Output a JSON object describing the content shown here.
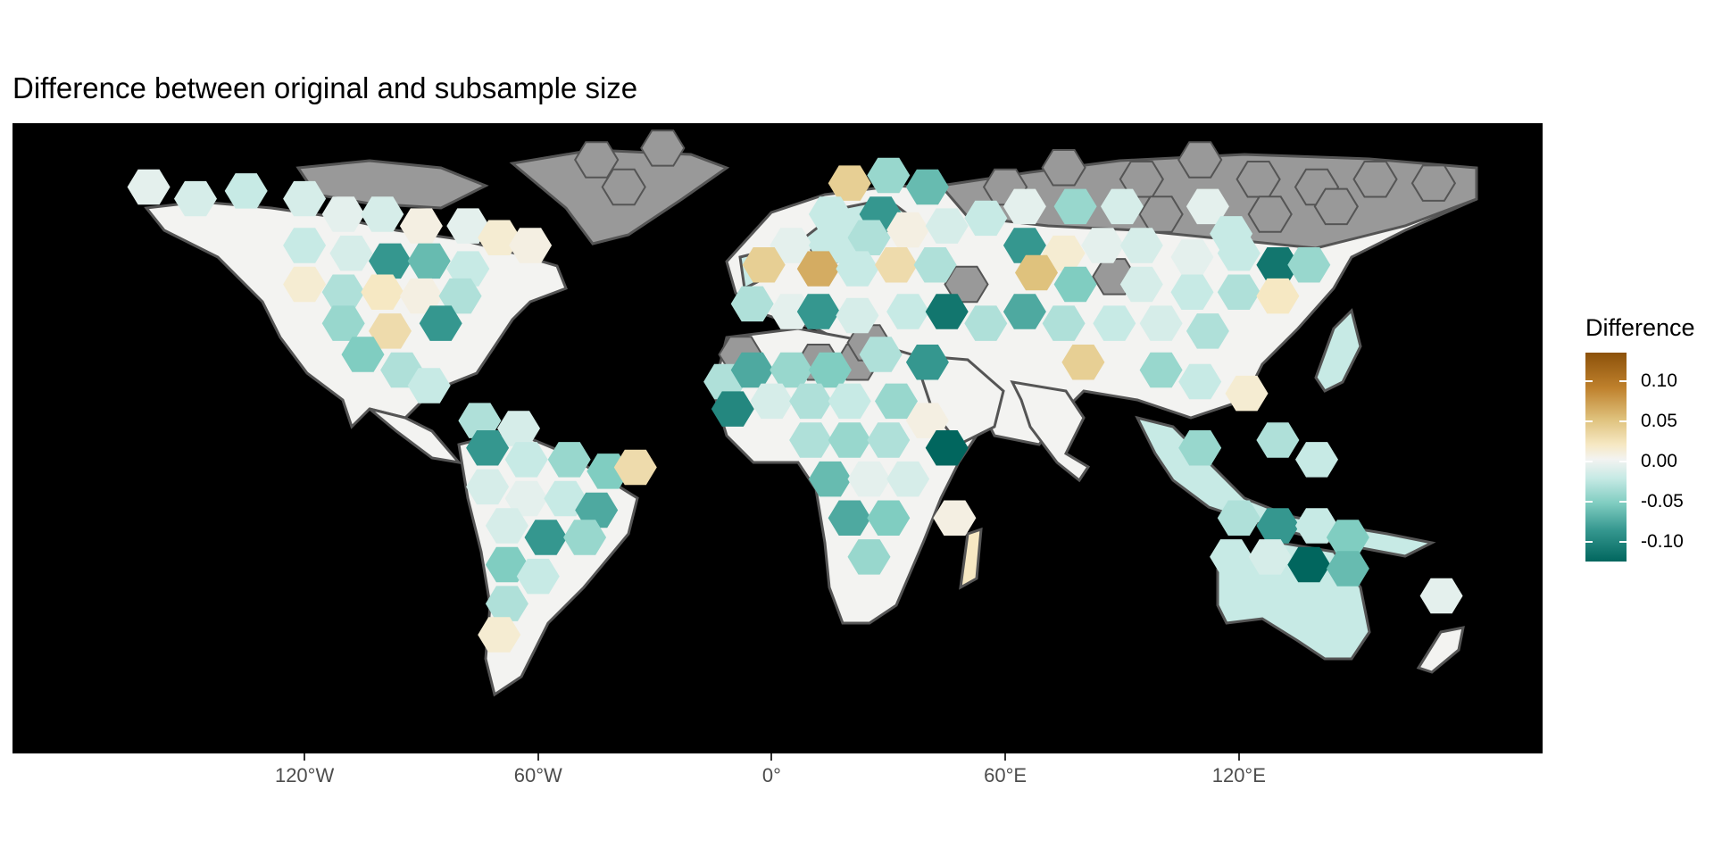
{
  "title": "Difference between original and subsample size",
  "x_axis": {
    "ticks": [
      {
        "label": "120°W",
        "value": -120
      },
      {
        "label": "60°W",
        "value": -60
      },
      {
        "label": "0°",
        "value": 0
      },
      {
        "label": "60°E",
        "value": 60
      },
      {
        "label": "120°E",
        "value": 120
      }
    ],
    "lon_range": [
      -195,
      198
    ]
  },
  "legend": {
    "title": "Difference",
    "range": [
      -0.125,
      0.135
    ],
    "ticks": [
      {
        "label": "0.10",
        "value": 0.1
      },
      {
        "label": "0.05",
        "value": 0.05
      },
      {
        "label": "0.00",
        "value": 0.0
      },
      {
        "label": "-0.05",
        "value": -0.05
      },
      {
        "label": "-0.10",
        "value": -0.1
      }
    ]
  },
  "colors": {
    "background": "#000000",
    "no_data": "#999999",
    "land_outline": "#555555",
    "palette": [
      "#01665e",
      "#35978f",
      "#80cdc1",
      "#c7eae5",
      "#f3f3f1",
      "#f6e8c3",
      "#dfc27d",
      "#bf812d",
      "#8c510a"
    ]
  },
  "map_data": {
    "type": "hexbin-choropleth",
    "no_data_cells": [
      {
        "lon": -45,
        "lat": 72
      },
      {
        "lon": -38,
        "lat": 65
      },
      {
        "lon": -28,
        "lat": 75
      },
      {
        "lon": 75,
        "lat": 70
      },
      {
        "lon": 95,
        "lat": 67
      },
      {
        "lon": 110,
        "lat": 72
      },
      {
        "lon": 125,
        "lat": 67
      },
      {
        "lon": 140,
        "lat": 65
      },
      {
        "lon": 155,
        "lat": 67
      },
      {
        "lon": 170,
        "lat": 66
      },
      {
        "lon": 145,
        "lat": 60
      },
      {
        "lon": 128,
        "lat": 58
      },
      {
        "lon": 60,
        "lat": 65
      },
      {
        "lon": 100,
        "lat": 58
      },
      {
        "lon": 12,
        "lat": 20
      },
      {
        "lon": 22,
        "lat": 20
      },
      {
        "lon": 25,
        "lat": 25
      },
      {
        "lon": -8,
        "lat": 22
      },
      {
        "lon": 50,
        "lat": 40
      },
      {
        "lon": 88,
        "lat": 42
      }
    ],
    "cells": [
      {
        "lon": -160,
        "lat": 65,
        "value": -0.01
      },
      {
        "lon": -148,
        "lat": 62,
        "value": -0.02
      },
      {
        "lon": -135,
        "lat": 64,
        "value": -0.03
      },
      {
        "lon": -120,
        "lat": 62,
        "value": -0.02
      },
      {
        "lon": -110,
        "lat": 58,
        "value": -0.01
      },
      {
        "lon": -100,
        "lat": 58,
        "value": -0.02
      },
      {
        "lon": -90,
        "lat": 55,
        "value": 0.01
      },
      {
        "lon": -78,
        "lat": 55,
        "value": -0.01
      },
      {
        "lon": -70,
        "lat": 52,
        "value": 0.02
      },
      {
        "lon": -62,
        "lat": 50,
        "value": 0.01
      },
      {
        "lon": -120,
        "lat": 50,
        "value": -0.03
      },
      {
        "lon": -108,
        "lat": 48,
        "value": -0.02
      },
      {
        "lon": -98,
        "lat": 46,
        "value": -0.09
      },
      {
        "lon": -88,
        "lat": 46,
        "value": -0.07
      },
      {
        "lon": -78,
        "lat": 44,
        "value": -0.03
      },
      {
        "lon": -120,
        "lat": 40,
        "value": 0.02
      },
      {
        "lon": -110,
        "lat": 38,
        "value": -0.04
      },
      {
        "lon": -100,
        "lat": 38,
        "value": 0.03
      },
      {
        "lon": -90,
        "lat": 37,
        "value": 0.01
      },
      {
        "lon": -80,
        "lat": 37,
        "value": -0.04
      },
      {
        "lon": -110,
        "lat": 30,
        "value": -0.05
      },
      {
        "lon": -98,
        "lat": 28,
        "value": 0.04
      },
      {
        "lon": -85,
        "lat": 30,
        "value": -0.09
      },
      {
        "lon": -105,
        "lat": 22,
        "value": -0.06
      },
      {
        "lon": -95,
        "lat": 18,
        "value": -0.04
      },
      {
        "lon": -88,
        "lat": 14,
        "value": -0.03
      },
      {
        "lon": -75,
        "lat": 5,
        "value": -0.04
      },
      {
        "lon": -65,
        "lat": 3,
        "value": -0.02
      },
      {
        "lon": -73,
        "lat": -2,
        "value": -0.09
      },
      {
        "lon": -63,
        "lat": -5,
        "value": -0.03
      },
      {
        "lon": -52,
        "lat": -5,
        "value": -0.05
      },
      {
        "lon": -42,
        "lat": -8,
        "value": -0.06
      },
      {
        "lon": -35,
        "lat": -7,
        "value": 0.04
      },
      {
        "lon": -73,
        "lat": -12,
        "value": -0.02
      },
      {
        "lon": -63,
        "lat": -15,
        "value": -0.01
      },
      {
        "lon": -53,
        "lat": -15,
        "value": -0.03
      },
      {
        "lon": -45,
        "lat": -18,
        "value": -0.08
      },
      {
        "lon": -68,
        "lat": -22,
        "value": -0.02
      },
      {
        "lon": -58,
        "lat": -25,
        "value": -0.09
      },
      {
        "lon": -48,
        "lat": -25,
        "value": -0.05
      },
      {
        "lon": -68,
        "lat": -32,
        "value": -0.06
      },
      {
        "lon": -60,
        "lat": -35,
        "value": -0.03
      },
      {
        "lon": -68,
        "lat": -42,
        "value": -0.04
      },
      {
        "lon": -70,
        "lat": -50,
        "value": 0.02
      },
      {
        "lon": 20,
        "lat": 66,
        "value": 0.05
      },
      {
        "lon": 30,
        "lat": 68,
        "value": -0.05
      },
      {
        "lon": 40,
        "lat": 65,
        "value": -0.07
      },
      {
        "lon": 15,
        "lat": 58,
        "value": -0.03
      },
      {
        "lon": 28,
        "lat": 58,
        "value": -0.09
      },
      {
        "lon": 5,
        "lat": 50,
        "value": -0.01
      },
      {
        "lon": 15,
        "lat": 50,
        "value": -0.03
      },
      {
        "lon": 25,
        "lat": 52,
        "value": -0.04
      },
      {
        "lon": 35,
        "lat": 54,
        "value": 0.01
      },
      {
        "lon": 45,
        "lat": 55,
        "value": -0.02
      },
      {
        "lon": 55,
        "lat": 57,
        "value": -0.03
      },
      {
        "lon": 65,
        "lat": 60,
        "value": -0.01
      },
      {
        "lon": 78,
        "lat": 60,
        "value": -0.05
      },
      {
        "lon": 90,
        "lat": 60,
        "value": -0.02
      },
      {
        "lon": 112,
        "lat": 60,
        "value": -0.01
      },
      {
        "lon": 118,
        "lat": 53,
        "value": -0.03
      },
      {
        "lon": -2,
        "lat": 45,
        "value": 0.05
      },
      {
        "lon": 12,
        "lat": 44,
        "value": 0.07
      },
      {
        "lon": 22,
        "lat": 44,
        "value": -0.03
      },
      {
        "lon": 32,
        "lat": 45,
        "value": 0.04
      },
      {
        "lon": 42,
        "lat": 45,
        "value": -0.04
      },
      {
        "lon": 65,
        "lat": 50,
        "value": -0.09
      },
      {
        "lon": 75,
        "lat": 48,
        "value": 0.02
      },
      {
        "lon": 85,
        "lat": 50,
        "value": -0.01
      },
      {
        "lon": 95,
        "lat": 50,
        "value": -0.02
      },
      {
        "lon": 108,
        "lat": 47,
        "value": -0.01
      },
      {
        "lon": 120,
        "lat": 48,
        "value": -0.03
      },
      {
        "lon": 130,
        "lat": 45,
        "value": -0.11
      },
      {
        "lon": 138,
        "lat": 45,
        "value": -0.05
      },
      {
        "lon": 68,
        "lat": 43,
        "value": 0.06
      },
      {
        "lon": 78,
        "lat": 40,
        "value": -0.06
      },
      {
        "lon": 95,
        "lat": 40,
        "value": -0.02
      },
      {
        "lon": 108,
        "lat": 38,
        "value": -0.03
      },
      {
        "lon": 120,
        "lat": 38,
        "value": -0.04
      },
      {
        "lon": 130,
        "lat": 37,
        "value": 0.03
      },
      {
        "lon": -5,
        "lat": 35,
        "value": -0.04
      },
      {
        "lon": 5,
        "lat": 33,
        "value": -0.01
      },
      {
        "lon": 12,
        "lat": 33,
        "value": -0.09
      },
      {
        "lon": 22,
        "lat": 32,
        "value": -0.02
      },
      {
        "lon": 35,
        "lat": 33,
        "value": -0.03
      },
      {
        "lon": 45,
        "lat": 33,
        "value": -0.11
      },
      {
        "lon": 55,
        "lat": 30,
        "value": -0.04
      },
      {
        "lon": 65,
        "lat": 33,
        "value": -0.08
      },
      {
        "lon": 75,
        "lat": 30,
        "value": -0.04
      },
      {
        "lon": 88,
        "lat": 30,
        "value": -0.03
      },
      {
        "lon": 100,
        "lat": 30,
        "value": -0.02
      },
      {
        "lon": 112,
        "lat": 28,
        "value": -0.04
      },
      {
        "lon": 80,
        "lat": 20,
        "value": 0.05
      },
      {
        "lon": 100,
        "lat": 18,
        "value": -0.05
      },
      {
        "lon": 110,
        "lat": 15,
        "value": -0.03
      },
      {
        "lon": 122,
        "lat": 12,
        "value": 0.02
      },
      {
        "lon": -12,
        "lat": 15,
        "value": -0.04
      },
      {
        "lon": -5,
        "lat": 18,
        "value": -0.08
      },
      {
        "lon": 5,
        "lat": 18,
        "value": -0.05
      },
      {
        "lon": 15,
        "lat": 18,
        "value": -0.06
      },
      {
        "lon": 28,
        "lat": 22,
        "value": -0.04
      },
      {
        "lon": 40,
        "lat": 20,
        "value": -0.09
      },
      {
        "lon": -10,
        "lat": 8,
        "value": -0.1
      },
      {
        "lon": 0,
        "lat": 10,
        "value": -0.02
      },
      {
        "lon": 10,
        "lat": 10,
        "value": -0.04
      },
      {
        "lon": 20,
        "lat": 10,
        "value": -0.03
      },
      {
        "lon": 32,
        "lat": 10,
        "value": -0.05
      },
      {
        "lon": 40,
        "lat": 5,
        "value": 0.01
      },
      {
        "lon": 45,
        "lat": -2,
        "value": -0.12
      },
      {
        "lon": 10,
        "lat": 0,
        "value": -0.04
      },
      {
        "lon": 20,
        "lat": 0,
        "value": -0.05
      },
      {
        "lon": 30,
        "lat": 0,
        "value": -0.04
      },
      {
        "lon": 15,
        "lat": -10,
        "value": -0.07
      },
      {
        "lon": 25,
        "lat": -10,
        "value": -0.01
      },
      {
        "lon": 35,
        "lat": -10,
        "value": -0.02
      },
      {
        "lon": 20,
        "lat": -20,
        "value": -0.08
      },
      {
        "lon": 30,
        "lat": -20,
        "value": -0.06
      },
      {
        "lon": 25,
        "lat": -30,
        "value": -0.05
      },
      {
        "lon": 47,
        "lat": -20,
        "value": 0.01
      },
      {
        "lon": 120,
        "lat": -20,
        "value": -0.04
      },
      {
        "lon": 130,
        "lat": -22,
        "value": -0.09
      },
      {
        "lon": 140,
        "lat": -22,
        "value": -0.03
      },
      {
        "lon": 148,
        "lat": -25,
        "value": -0.06
      },
      {
        "lon": 118,
        "lat": -30,
        "value": -0.03
      },
      {
        "lon": 128,
        "lat": -30,
        "value": -0.02
      },
      {
        "lon": 138,
        "lat": -32,
        "value": -0.12
      },
      {
        "lon": 148,
        "lat": -33,
        "value": -0.07
      },
      {
        "lon": 172,
        "lat": -40,
        "value": -0.01
      },
      {
        "lon": 130,
        "lat": 0,
        "value": -0.04
      },
      {
        "lon": 140,
        "lat": -5,
        "value": -0.03
      },
      {
        "lon": 110,
        "lat": -2,
        "value": -0.05
      }
    ]
  }
}
